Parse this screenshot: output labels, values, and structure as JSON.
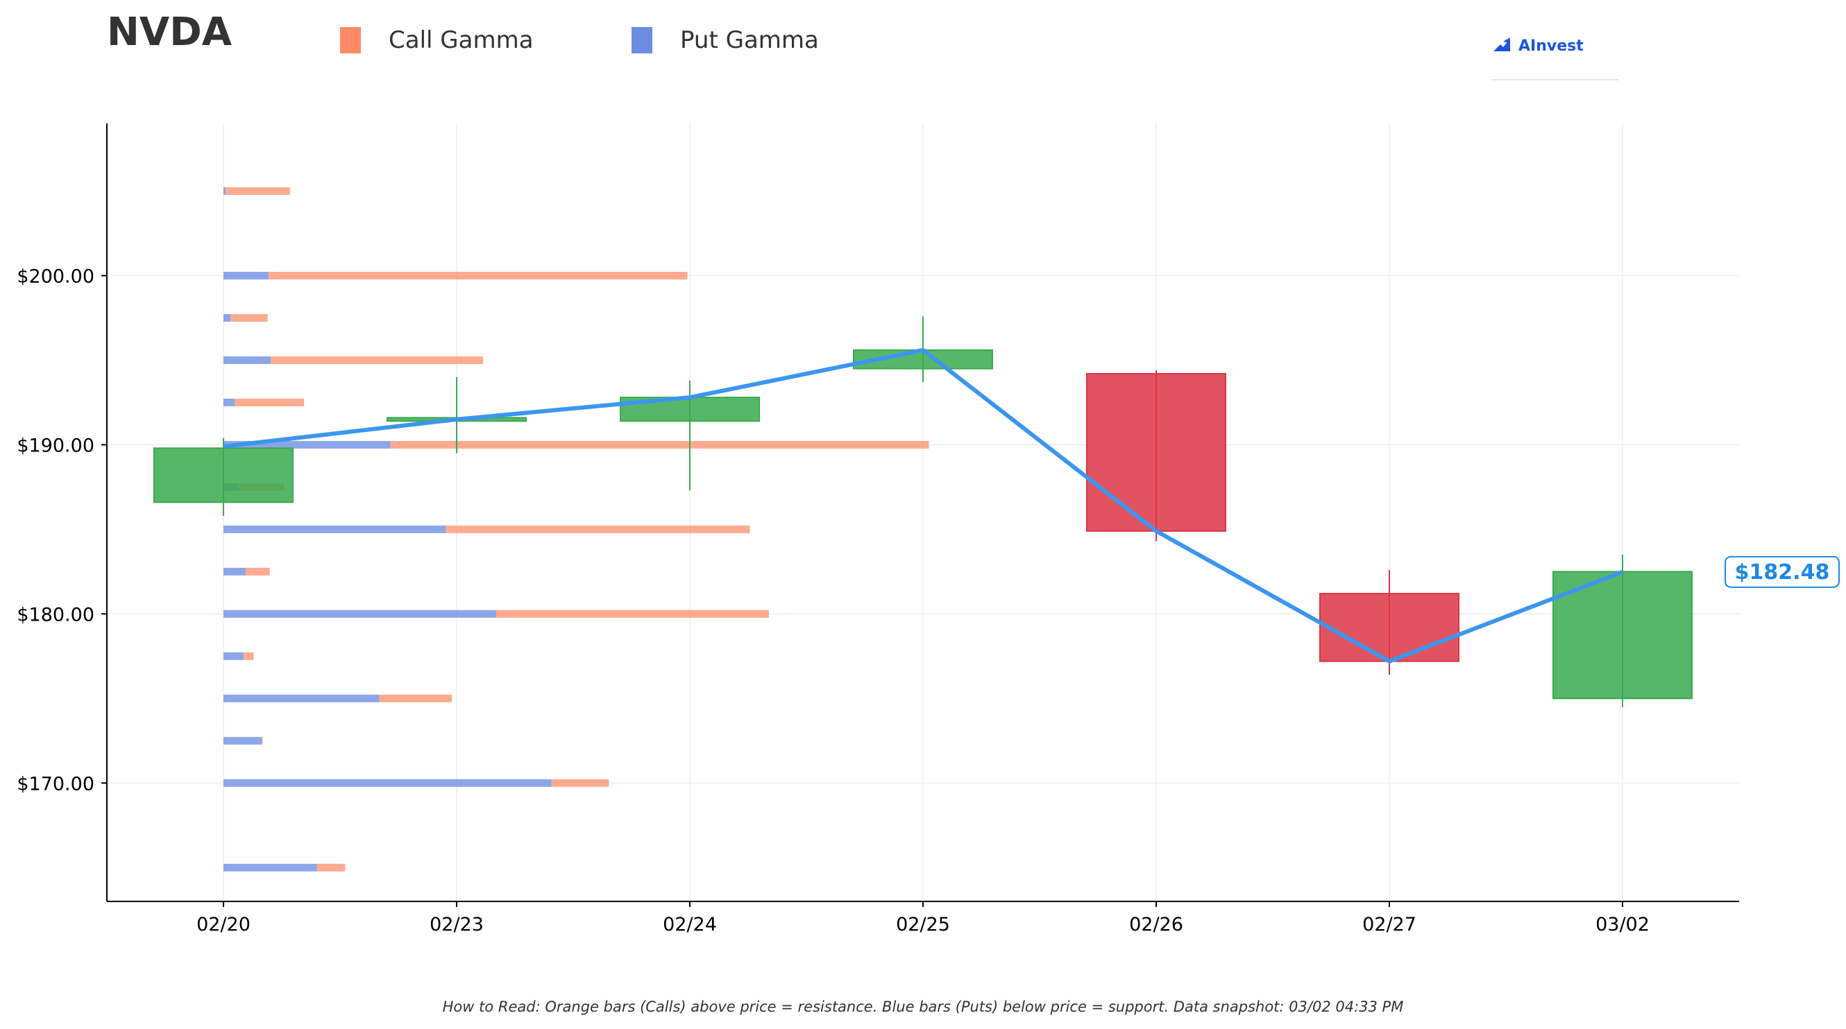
{
  "header": {
    "ticker": "NVDA",
    "legend": [
      {
        "label": "Call Gamma",
        "color": "#ff8a65"
      },
      {
        "label": "Put Gamma",
        "color": "#6b8de3"
      }
    ],
    "logo_text": "AInvest"
  },
  "caption": "How to Read: Orange bars (Calls) above price = resistance. Blue bars (Puts) below price = support. Data snapshot: 03/02 04:33 PM",
  "colors": {
    "call": "#ff8a65",
    "put": "#6b8de3",
    "up_candle": "#3aaa4d",
    "down_candle": "#dc3545",
    "price_line": "#3a96ef",
    "last_price_label": "#1e88e5"
  },
  "chart_data": {
    "type": "candlestick",
    "ylim": [
      163,
      209
    ],
    "y_ticks": [
      170,
      180,
      190,
      200
    ],
    "y_tick_labels": [
      "$170.00",
      "$180.00",
      "$190.00",
      "$200.00"
    ],
    "grid": true,
    "legend_position": "top",
    "categories": [
      "02/20",
      "02/23",
      "02/24",
      "02/25",
      "02/26",
      "02/27",
      "03/02"
    ],
    "candles": [
      {
        "date": "02/20",
        "open": 186.6,
        "close": 189.8,
        "high": 190.4,
        "low": 185.8
      },
      {
        "date": "02/23",
        "open": 191.4,
        "close": 191.6,
        "high": 194.0,
        "low": 189.5
      },
      {
        "date": "02/24",
        "open": 191.4,
        "close": 192.8,
        "high": 193.8,
        "low": 187.3
      },
      {
        "date": "02/25",
        "open": 194.5,
        "close": 195.6,
        "high": 197.6,
        "low": 193.7
      },
      {
        "date": "02/26",
        "open": 194.2,
        "close": 184.9,
        "high": 194.4,
        "low": 184.3
      },
      {
        "date": "02/27",
        "open": 181.2,
        "close": 177.2,
        "high": 182.6,
        "low": 176.4
      },
      {
        "date": "03/02",
        "open": 175.0,
        "close": 182.5,
        "high": 183.5,
        "low": 174.5
      }
    ],
    "price_line": {
      "values": [
        189.9,
        191.5,
        192.8,
        195.6,
        184.9,
        177.2,
        182.48
      ]
    },
    "last_price_label": "$182.48",
    "gamma_series": [
      {
        "name": "Put Gamma",
        "strikes": [
          165,
          170,
          172.5,
          175,
          177.5,
          180,
          182.5,
          185,
          187.5,
          190,
          192.5,
          195,
          197.5,
          200,
          205
        ],
        "values": [
          0.93,
          3.26,
          0.38,
          1.55,
          0.2,
          2.71,
          0.22,
          2.21,
          0.15,
          1.66,
          0.11,
          0.47,
          0.07,
          0.45,
          0.02
        ]
      },
      {
        "name": "Call Gamma",
        "strikes": [
          165,
          170,
          172.5,
          175,
          177.5,
          180,
          182.5,
          185,
          187.5,
          190,
          192.5,
          195,
          197.5,
          200,
          205
        ],
        "values": [
          0.28,
          0.57,
          0.01,
          0.72,
          0.1,
          2.71,
          0.24,
          3.02,
          0.45,
          5.35,
          0.69,
          2.11,
          0.37,
          4.16,
          0.64
        ]
      }
    ]
  }
}
